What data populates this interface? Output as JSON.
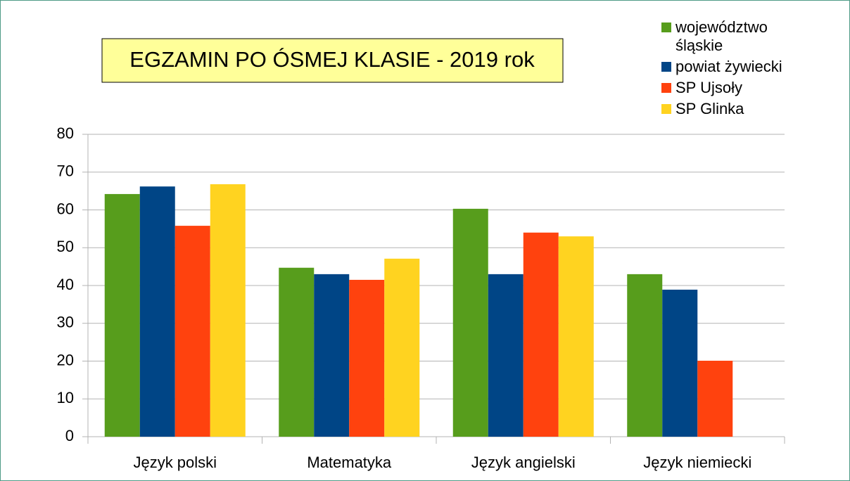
{
  "chart_data": {
    "type": "bar",
    "title": "EGZAMIN PO ÓSMEJ KLASIE - 2019 rok",
    "categories": [
      "Język polski",
      "Matematyka",
      "Język angielski",
      "Język niemiecki"
    ],
    "series": [
      {
        "name": "województwo śląskie",
        "color": "#579d1c",
        "values": [
          64.2,
          44.7,
          60.3,
          43.0
        ]
      },
      {
        "name": "powiat żywiecki",
        "color": "#004586",
        "values": [
          66.2,
          43.0,
          43.0,
          38.9
        ]
      },
      {
        "name": "SP Ujsoły",
        "color": "#ff420e",
        "values": [
          55.8,
          41.5,
          54.0,
          20.1
        ]
      },
      {
        "name": "SP Glinka",
        "color": "#ffd320",
        "values": [
          66.8,
          47.1,
          53.0,
          null
        ]
      }
    ],
    "ylim": [
      0,
      80
    ],
    "yticks": [
      0,
      10,
      20,
      30,
      40,
      50,
      60,
      70,
      80
    ],
    "grid": true,
    "legend": "top-right"
  }
}
